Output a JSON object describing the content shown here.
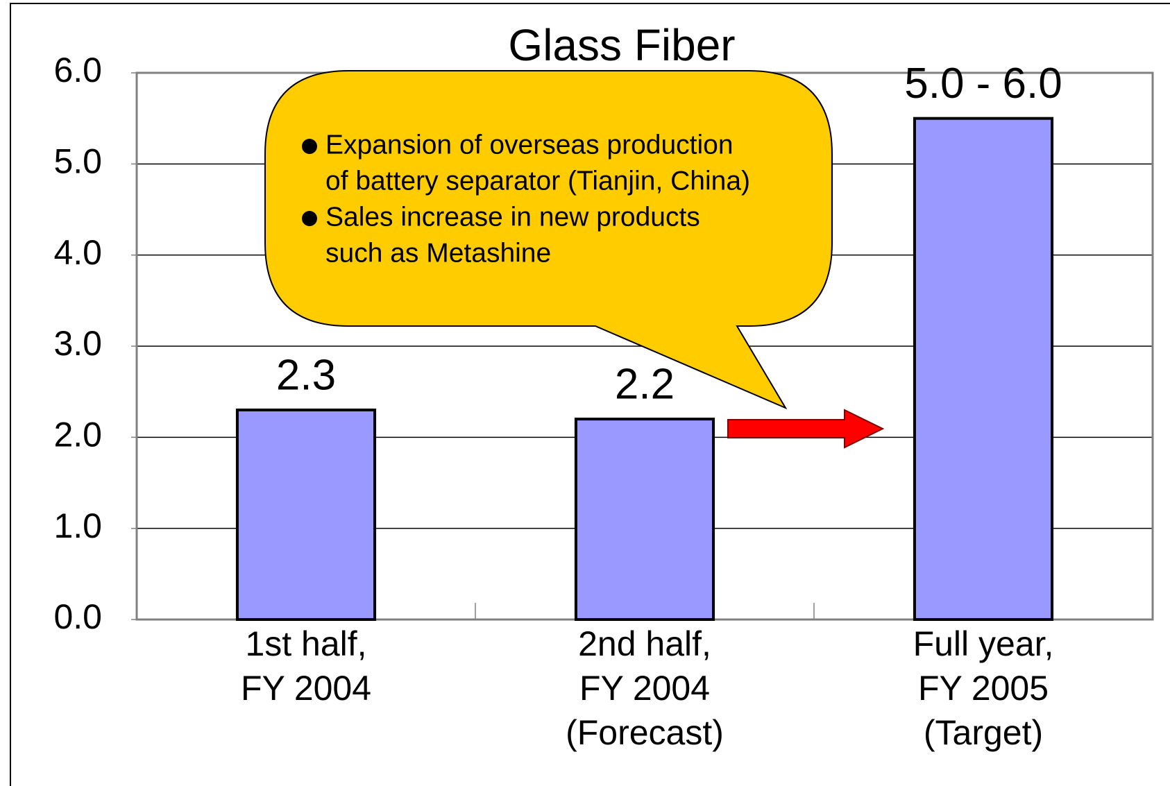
{
  "chart_data": {
    "type": "bar",
    "title": "Glass Fiber",
    "categories": [
      [
        "1st half,",
        "FY 2004"
      ],
      [
        "2nd half,",
        "FY 2004",
        "(Forecast)"
      ],
      [
        "Full year,",
        "FY 2005",
        "(Target)"
      ]
    ],
    "values": [
      2.3,
      2.2,
      5.5
    ],
    "value_labels": [
      "2.3",
      "2.2",
      "5.0 - 6.0"
    ],
    "color": "#9999ff",
    "ylim": [
      0,
      6
    ],
    "yticks": [
      {
        "value": 0,
        "label": "0.0"
      },
      {
        "value": 1,
        "label": "1.0"
      },
      {
        "value": 2,
        "label": "2.0"
      },
      {
        "value": 3,
        "label": "3.0"
      },
      {
        "value": 4,
        "label": "4.0"
      },
      {
        "value": 5,
        "label": "5.0"
      },
      {
        "value": 6,
        "label": "6.0"
      }
    ],
    "grid": true,
    "annotation": [
      [
        "Expansion of overseas production",
        "of battery separator (Tianjin, China)"
      ],
      [
        "Sales increase in new products",
        "such as Metashine"
      ]
    ]
  }
}
